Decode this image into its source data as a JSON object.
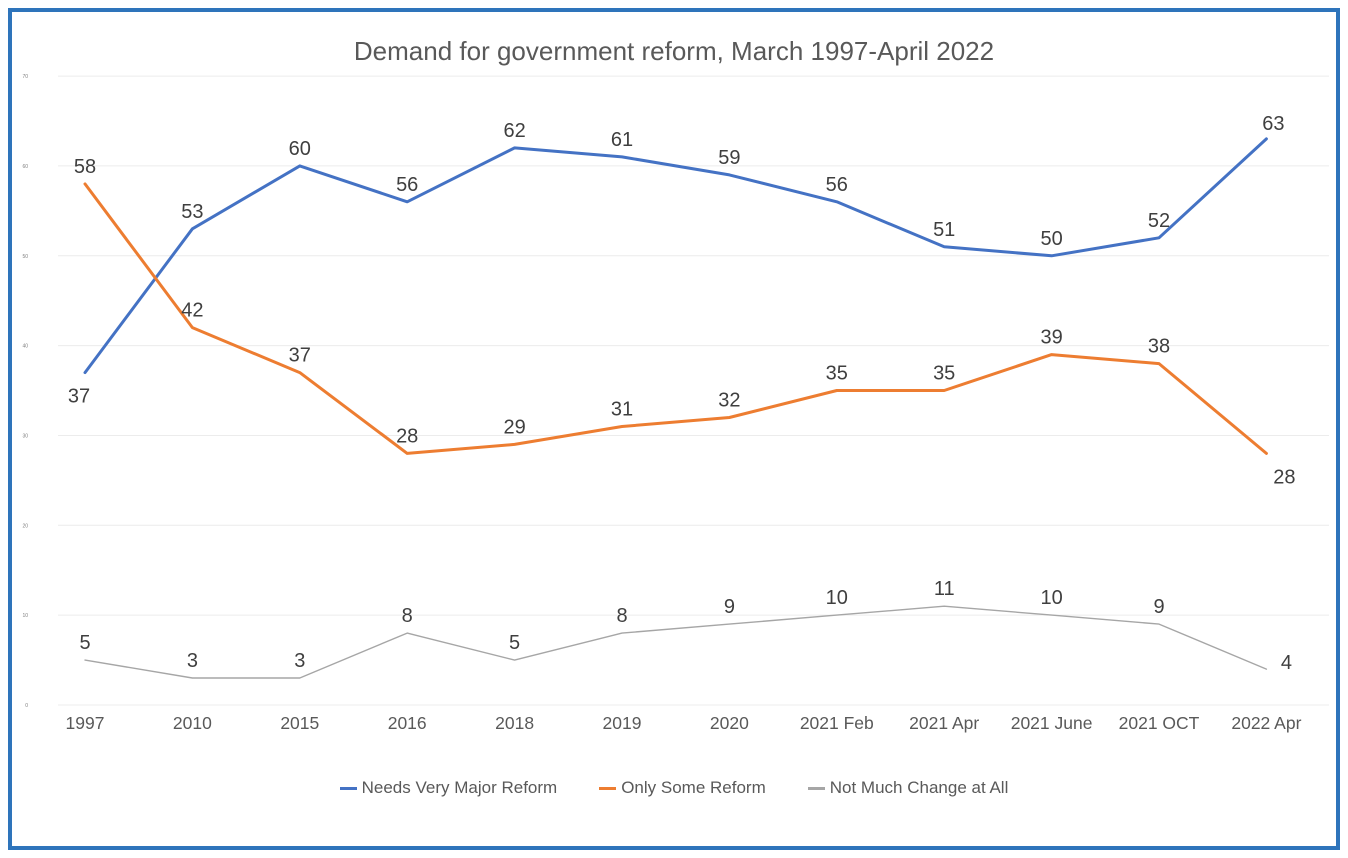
{
  "title": "Demand for government reform, March 1997-April 2022",
  "colors": {
    "frame": "#2E74BB",
    "gridline": "#ECECEC",
    "title_text": "#595959",
    "axis_text": "#595959",
    "label_text": "#3F3F3F",
    "series_blue": "#4472C4",
    "series_orange": "#ED7D31",
    "series_gray": "#A6A6A6"
  },
  "chart_data": {
    "type": "line",
    "title": "Demand for government reform, March 1997-April 2022",
    "categories": [
      "1997",
      "2010",
      "2015",
      "2016",
      "2018",
      "2019",
      "2020",
      "2021 Feb",
      "2021 Apr",
      "2021 June",
      "2021 OCT",
      "2022 Apr"
    ],
    "series": [
      {
        "name": "Needs Very Major Reform",
        "color": "#4472C4",
        "values": [
          37,
          53,
          60,
          56,
          62,
          61,
          59,
          56,
          51,
          50,
          52,
          63
        ]
      },
      {
        "name": "Only Some Reform",
        "color": "#ED7D31",
        "values": [
          58,
          42,
          37,
          28,
          29,
          31,
          32,
          35,
          35,
          39,
          38,
          28
        ]
      },
      {
        "name": "Not Much Change at All",
        "color": "#A6A6A6",
        "values": [
          5,
          3,
          3,
          8,
          5,
          8,
          9,
          10,
          11,
          10,
          9,
          4
        ]
      }
    ],
    "ylim": [
      0,
      70
    ],
    "y_ticks": [
      0,
      10,
      20,
      30,
      40,
      50,
      60,
      70
    ],
    "grid": true,
    "data_labels": true,
    "legend_position": "bottom"
  }
}
